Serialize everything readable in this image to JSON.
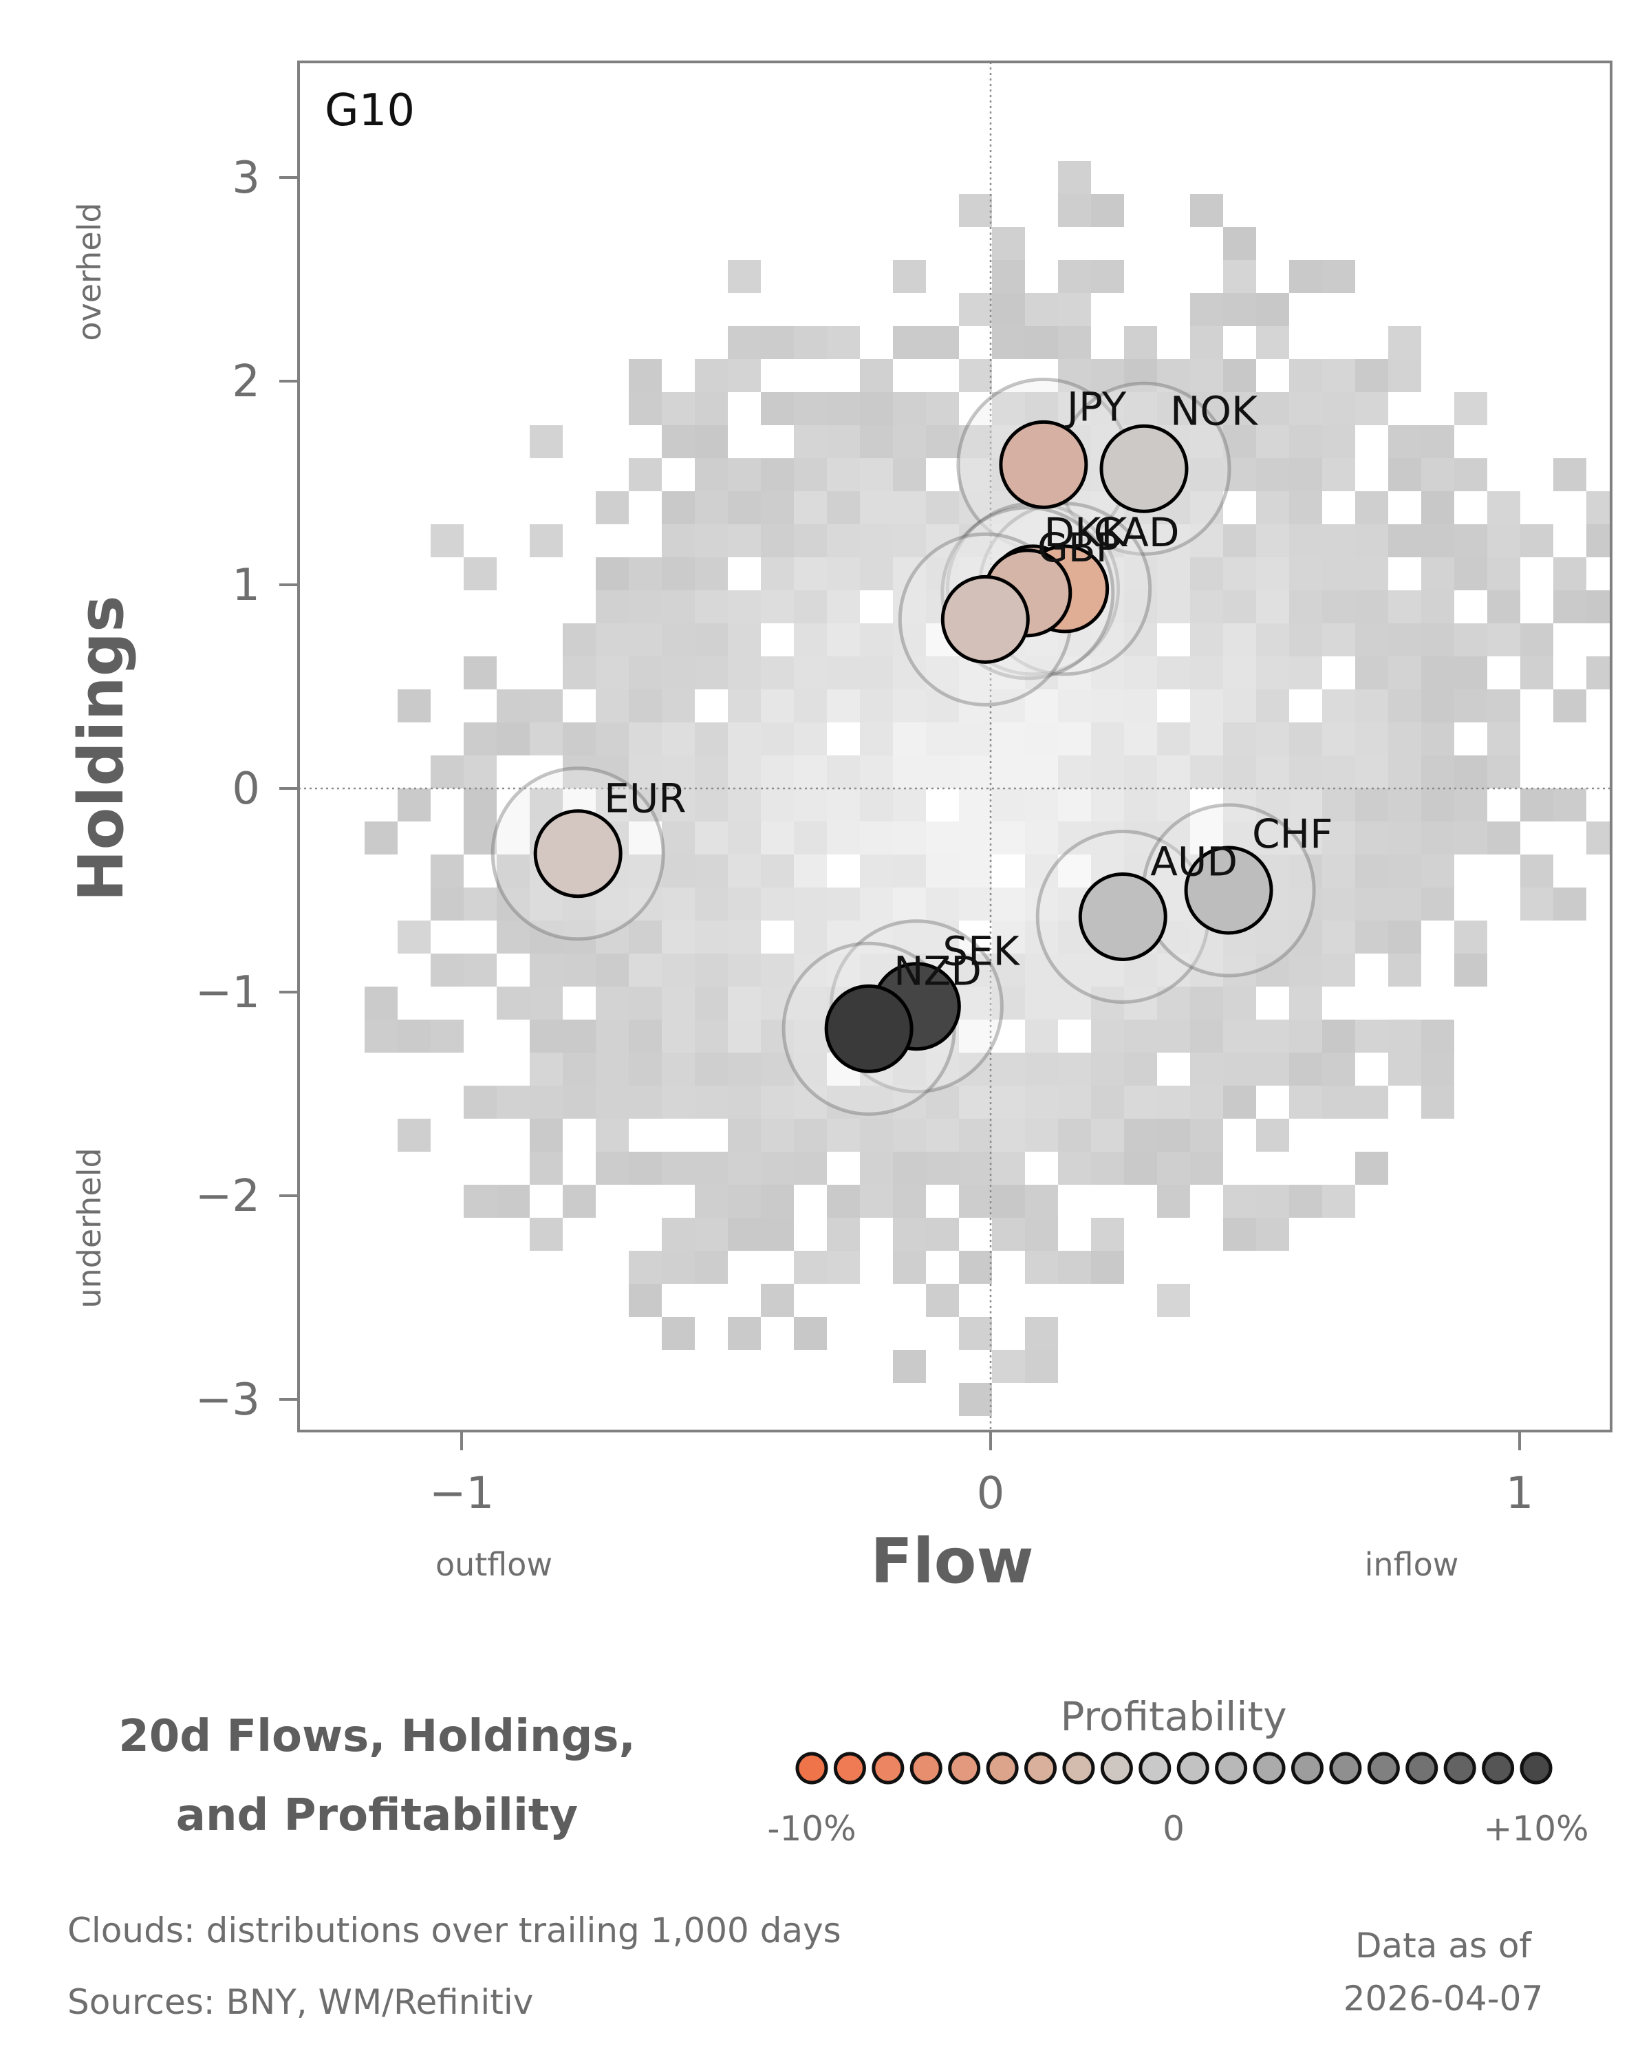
{
  "chart_data": {
    "type": "scatter",
    "panel_label": "G10",
    "xlabel": "Flow",
    "ylabel": "Holdings",
    "x_ticks": [
      "−1",
      "0",
      "1"
    ],
    "y_ticks": [
      "3",
      "2",
      "1",
      "0",
      "−1",
      "−2",
      "−3"
    ],
    "xlim": [
      -1.3,
      1.17
    ],
    "ylim": [
      -3.15,
      3.55
    ],
    "x_left_note": "outflow",
    "x_right_note": "inflow",
    "y_top_note": "overheld",
    "y_bottom_note": "underheld",
    "reference_lines": {
      "x": 0,
      "y": 0
    },
    "points": [
      {
        "label": "JPY",
        "x": 0.1,
        "y": 1.59,
        "profitability": -3,
        "color": "#d6b1a3"
      },
      {
        "label": "NOK",
        "x": 0.29,
        "y": 1.57,
        "profitability": 1,
        "color": "#cdc9c6"
      },
      {
        "label": "DKK",
        "x": 0.08,
        "y": 0.98,
        "profitability": -3,
        "color": "#d7b2a4"
      },
      {
        "label": "CAD",
        "x": 0.14,
        "y": 0.98,
        "profitability": -5,
        "color": "#e0ad95"
      },
      {
        "label": "GBP",
        "x": 0.07,
        "y": 0.96,
        "profitability": -3,
        "color": "#d5b5a8"
      },
      {
        "label": "EUR",
        "x": -0.78,
        "y": -0.32,
        "profitability": -1,
        "color": "#d4c6c1"
      },
      {
        "label": "AUD",
        "x": 0.25,
        "y": -0.63,
        "profitability": 3,
        "color": "#bfbfbf"
      },
      {
        "label": "CHF",
        "x": 0.45,
        "y": -0.5,
        "profitability": 3,
        "color": "#bcbdbc"
      },
      {
        "label": "SEK",
        "x": -0.14,
        "y": -1.07,
        "profitability": 9,
        "color": "#454545"
      },
      {
        "label": "NZD",
        "x": -0.23,
        "y": -1.18,
        "profitability": 10,
        "color": "#3a3a3a"
      }
    ],
    "extra_point": {
      "x": -0.01,
      "y": 0.83,
      "profitability": -2,
      "color": "#d3c0b8"
    },
    "legend": {
      "title": "Profitability",
      "min_label": "-10%",
      "mid_label": "0",
      "max_label": "+10%",
      "colors": [
        "#f0744a",
        "#ef7b55",
        "#ec8562",
        "#e78e6e",
        "#e2997d",
        "#ddA48c",
        "#d8b09c",
        "#d3bcae",
        "#cec6c1",
        "#c9c9c9",
        "#c2c2c2",
        "#b8b8b8",
        "#ababab",
        "#9d9d9d",
        "#8f8f8f",
        "#808080",
        "#727272",
        "#636363",
        "#555555",
        "#474747"
      ]
    },
    "title_line1": "20d Flows, Holdings,",
    "title_line2": "and Profitability"
  },
  "footer": {
    "clouds_note": "Clouds:  distributions over trailing 1,000 days",
    "sources_note": "Sources:  BNY, WM/Refinitiv",
    "data_as_of_label": "Data as of",
    "data_as_of_date": "2026-04-07"
  }
}
